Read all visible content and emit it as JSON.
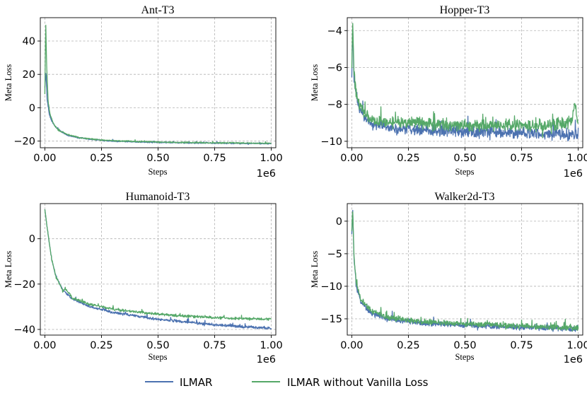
{
  "chart_data": [
    {
      "type": "line",
      "title": "Ant-T3",
      "xlabel": "Steps",
      "ylabel": "Meta Loss",
      "x_offset_label": "1e6",
      "xlim": [
        -0.02,
        1.02
      ],
      "ylim": [
        -24,
        54
      ],
      "x_ticks": [
        0.0,
        0.25,
        0.5,
        0.75,
        1.0
      ],
      "x_tick_labels": [
        "0.00",
        "0.25",
        "0.50",
        "0.75",
        "1.00"
      ],
      "y_ticks": [
        -20,
        0,
        20,
        40
      ],
      "y_tick_labels": [
        "−20",
        "0",
        "20",
        "40"
      ],
      "series": [
        {
          "name": "ILMAR",
          "color": "#4c72b0",
          "noise": 0.5,
          "points": [
            [
              0.0,
              12
            ],
            [
              0.005,
              22
            ],
            [
              0.01,
              5
            ],
            [
              0.02,
              -4
            ],
            [
              0.03,
              -8
            ],
            [
              0.05,
              -12
            ],
            [
              0.08,
              -15
            ],
            [
              0.1,
              -16.5
            ],
            [
              0.15,
              -18
            ],
            [
              0.2,
              -19
            ],
            [
              0.3,
              -20
            ],
            [
              0.5,
              -20.8
            ],
            [
              0.7,
              -21.2
            ],
            [
              0.9,
              -21.4
            ],
            [
              1.0,
              -21.5
            ]
          ]
        },
        {
          "name": "ILMAR without Vanilla Loss",
          "color": "#55a868",
          "noise": 0.5,
          "points": [
            [
              0.0,
              8
            ],
            [
              0.004,
              51
            ],
            [
              0.008,
              25
            ],
            [
              0.015,
              3
            ],
            [
              0.025,
              -5
            ],
            [
              0.04,
              -10
            ],
            [
              0.06,
              -13.5
            ],
            [
              0.1,
              -16
            ],
            [
              0.15,
              -17.8
            ],
            [
              0.2,
              -18.8
            ],
            [
              0.3,
              -19.8
            ],
            [
              0.5,
              -20.6
            ],
            [
              0.7,
              -21
            ],
            [
              0.9,
              -21.2
            ],
            [
              1.0,
              -21.3
            ]
          ]
        }
      ]
    },
    {
      "type": "line",
      "title": "Hopper-T3",
      "xlabel": "Steps",
      "ylabel": "Meta Loss",
      "x_offset_label": "1e6",
      "xlim": [
        -0.02,
        1.02
      ],
      "ylim": [
        -10.35,
        -3.3
      ],
      "x_ticks": [
        0.0,
        0.25,
        0.5,
        0.75,
        1.0
      ],
      "x_tick_labels": [
        "0.00",
        "0.25",
        "0.50",
        "0.75",
        "1.00"
      ],
      "y_ticks": [
        -10,
        -8,
        -6,
        -4
      ],
      "y_tick_labels": [
        "−10",
        "−8",
        "−6",
        "−4"
      ],
      "series": [
        {
          "name": "ILMAR",
          "color": "#4c72b0",
          "noise": 0.4,
          "points": [
            [
              0.0,
              -6.5
            ],
            [
              0.004,
              -3.7
            ],
            [
              0.01,
              -6.8
            ],
            [
              0.02,
              -7.6
            ],
            [
              0.04,
              -8.4
            ],
            [
              0.07,
              -8.9
            ],
            [
              0.1,
              -9.1
            ],
            [
              0.2,
              -9.3
            ],
            [
              0.4,
              -9.45
            ],
            [
              0.6,
              -9.5
            ],
            [
              0.8,
              -9.6
            ],
            [
              1.0,
              -9.65
            ]
          ]
        },
        {
          "name": "ILMAR without Vanilla Loss",
          "color": "#55a868",
          "noise": 0.4,
          "points": [
            [
              0.0,
              -6.0
            ],
            [
              0.004,
              -3.4
            ],
            [
              0.01,
              -6.4
            ],
            [
              0.02,
              -7.4
            ],
            [
              0.04,
              -8.2
            ],
            [
              0.07,
              -8.7
            ],
            [
              0.1,
              -8.9
            ],
            [
              0.2,
              -9.0
            ],
            [
              0.4,
              -9.1
            ],
            [
              0.6,
              -9.15
            ],
            [
              0.8,
              -9.15
            ],
            [
              0.97,
              -9.0
            ],
            [
              0.985,
              -7.9
            ],
            [
              1.0,
              -9.1
            ]
          ]
        }
      ]
    },
    {
      "type": "line",
      "title": "Humanoid-T3",
      "xlabel": "Steps",
      "ylabel": "Meta Loss",
      "x_offset_label": "1e6",
      "xlim": [
        -0.02,
        1.02
      ],
      "ylim": [
        -42.5,
        15.5
      ],
      "x_ticks": [
        0.0,
        0.25,
        0.5,
        0.75,
        1.0
      ],
      "x_tick_labels": [
        "0.00",
        "0.25",
        "0.50",
        "0.75",
        "1.00"
      ],
      "y_ticks": [
        -40,
        -20,
        0
      ],
      "y_tick_labels": [
        "−40",
        "−20",
        "0"
      ],
      "series": [
        {
          "name": "ILMAR",
          "color": "#4c72b0",
          "noise": 0.7,
          "points": [
            [
              0.0,
              13
            ],
            [
              0.01,
              5
            ],
            [
              0.03,
              -9
            ],
            [
              0.05,
              -17
            ],
            [
              0.08,
              -22.5
            ],
            [
              0.12,
              -26.5
            ],
            [
              0.2,
              -30
            ],
            [
              0.3,
              -32.5
            ],
            [
              0.4,
              -34
            ],
            [
              0.5,
              -35.5
            ],
            [
              0.6,
              -36.5
            ],
            [
              0.7,
              -37.5
            ],
            [
              0.8,
              -38.3
            ],
            [
              0.9,
              -39
            ],
            [
              1.0,
              -39.5
            ]
          ]
        },
        {
          "name": "ILMAR without Vanilla Loss",
          "color": "#55a868",
          "noise": 0.7,
          "points": [
            [
              0.0,
              13
            ],
            [
              0.01,
              5
            ],
            [
              0.03,
              -9
            ],
            [
              0.05,
              -17
            ],
            [
              0.07,
              -21
            ],
            [
              0.08,
              -23
            ],
            [
              0.09,
              -22
            ],
            [
              0.12,
              -26
            ],
            [
              0.2,
              -29
            ],
            [
              0.3,
              -31
            ],
            [
              0.4,
              -32.3
            ],
            [
              0.5,
              -33.2
            ],
            [
              0.6,
              -34
            ],
            [
              0.7,
              -34.5
            ],
            [
              0.8,
              -35
            ],
            [
              0.9,
              -35.3
            ],
            [
              1.0,
              -35.5
            ]
          ]
        }
      ]
    },
    {
      "type": "line",
      "title": "Walker2d-T3",
      "xlabel": "Steps",
      "ylabel": "Meta Loss",
      "x_offset_label": "1e6",
      "xlim": [
        -0.02,
        1.02
      ],
      "ylim": [
        -17.5,
        2.7
      ],
      "x_ticks": [
        0.0,
        0.25,
        0.5,
        0.75,
        1.0
      ],
      "x_tick_labels": [
        "0.00",
        "0.25",
        "0.50",
        "0.75",
        "1.00"
      ],
      "y_ticks": [
        -15,
        -10,
        -5,
        0
      ],
      "y_tick_labels": [
        "−15",
        "−10",
        "−5",
        "0"
      ],
      "series": [
        {
          "name": "ILMAR",
          "color": "#4c72b0",
          "noise": 0.5,
          "points": [
            [
              0.0,
              -2
            ],
            [
              0.004,
              2
            ],
            [
              0.01,
              -6
            ],
            [
              0.02,
              -10
            ],
            [
              0.04,
              -12.5
            ],
            [
              0.08,
              -14
            ],
            [
              0.15,
              -15
            ],
            [
              0.3,
              -15.6
            ],
            [
              0.5,
              -16
            ],
            [
              0.7,
              -16.3
            ],
            [
              0.9,
              -16.5
            ],
            [
              1.0,
              -16.6
            ]
          ]
        },
        {
          "name": "ILMAR without Vanilla Loss",
          "color": "#55a868",
          "noise": 0.5,
          "points": [
            [
              0.0,
              -1.5
            ],
            [
              0.004,
              1.8
            ],
            [
              0.01,
              -5.5
            ],
            [
              0.02,
              -9.5
            ],
            [
              0.04,
              -12
            ],
            [
              0.08,
              -13.7
            ],
            [
              0.15,
              -14.7
            ],
            [
              0.3,
              -15.4
            ],
            [
              0.5,
              -15.8
            ],
            [
              0.6,
              -15.9
            ],
            [
              0.7,
              -16.1
            ],
            [
              0.9,
              -16.3
            ],
            [
              1.0,
              -16.4
            ]
          ]
        }
      ]
    }
  ],
  "legend": {
    "items": [
      {
        "label": "ILMAR",
        "color": "#4c72b0"
      },
      {
        "label": "ILMAR without Vanilla Loss",
        "color": "#55a868"
      }
    ]
  }
}
